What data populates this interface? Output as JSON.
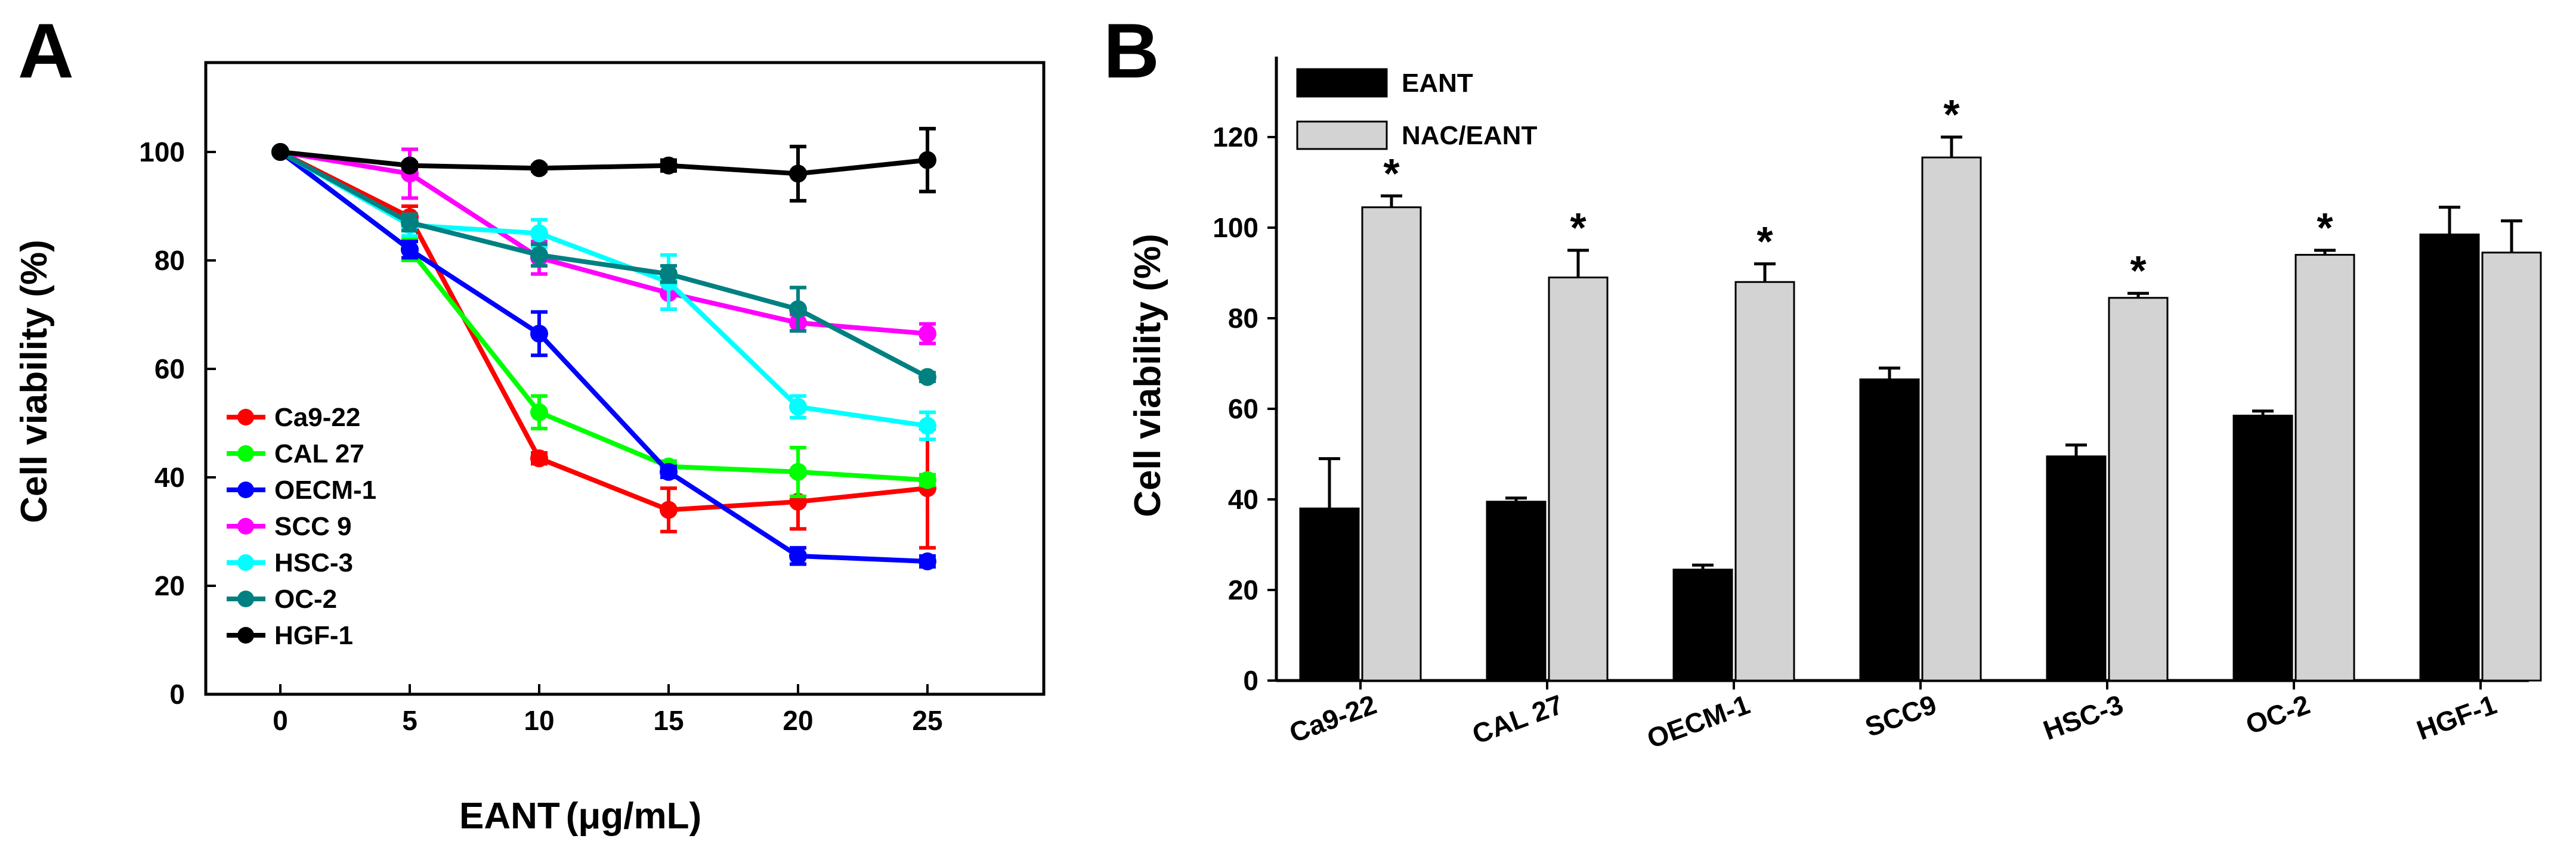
{
  "chart_data": [
    {
      "panel": "A",
      "type": "line",
      "xlabel_main": "EANT",
      "xlabel_unit": "(μg/mL)",
      "ylabel": "Cell viability (%)",
      "x": [
        0,
        5,
        10,
        15,
        20,
        25
      ],
      "x_ticks": [
        "0",
        "5",
        "10",
        "15",
        "20",
        "25"
      ],
      "ylim": [
        0,
        120
      ],
      "y_ticks": [
        "0",
        "20",
        "40",
        "60",
        "80",
        "100"
      ],
      "grid": false,
      "legend_position": "bottom-left",
      "series": [
        {
          "name": "Ca9-22",
          "color": "#ff0000",
          "values": [
            100,
            88,
            43.5,
            34,
            35.5,
            38
          ],
          "errors": [
            0,
            2,
            1,
            4,
            5,
            11
          ]
        },
        {
          "name": "CAL 27",
          "color": "#00ff00",
          "values": [
            100,
            82,
            52,
            42,
            41,
            39.5
          ],
          "errors": [
            0,
            2,
            3,
            1,
            4.5,
            1
          ]
        },
        {
          "name": "OECM-1",
          "color": "#0000ff",
          "values": [
            100,
            82,
            66.5,
            41,
            25.5,
            24.5
          ],
          "errors": [
            0,
            1.5,
            4,
            1,
            1.5,
            1
          ]
        },
        {
          "name": "SCC 9",
          "color": "#ff00ff",
          "values": [
            100,
            96,
            80.5,
            74,
            68.5,
            66.5
          ],
          "errors": [
            0,
            4.5,
            3,
            3,
            1.5,
            1.8
          ]
        },
        {
          "name": "HSC-3",
          "color": "#00ffff",
          "values": [
            100,
            86.5,
            85,
            76,
            53,
            49.5
          ],
          "errors": [
            0,
            2,
            2.5,
            5,
            2,
            2.5
          ]
        },
        {
          "name": "OC-2",
          "color": "#008080",
          "values": [
            100,
            87,
            81,
            77.5,
            71,
            58.5
          ],
          "errors": [
            0,
            1.5,
            2,
            1.5,
            4,
            0.8
          ]
        },
        {
          "name": "HGF-1",
          "color": "#000000",
          "values": [
            100,
            97.5,
            97,
            97.5,
            96,
            98.5
          ],
          "errors": [
            0,
            0.5,
            0.5,
            1,
            5,
            5.8
          ]
        }
      ]
    },
    {
      "panel": "B",
      "type": "bar",
      "ylabel": "Cell viability (%)",
      "categories": [
        "Ca9-22",
        "CAL 27",
        "OECM-1",
        "SCC9",
        "HSC-3",
        "OC-2",
        "HGF-1"
      ],
      "ylim": [
        0,
        140
      ],
      "y_ticks": [
        "0",
        "20",
        "40",
        "60",
        "80",
        "100",
        "120"
      ],
      "grid": false,
      "legend_position": "top-left",
      "significance_marker": "*",
      "series": [
        {
          "name": "EANT",
          "color": "#000000",
          "values": [
            38,
            39.5,
            24.5,
            66.5,
            49.5,
            58.5,
            98.5
          ],
          "errors": [
            11,
            0.8,
            1,
            2.5,
            2.5,
            1,
            6
          ],
          "significant": [
            false,
            false,
            false,
            false,
            false,
            false,
            false
          ]
        },
        {
          "name": "NAC/EANT",
          "color": "#d3d3d3",
          "values": [
            104.5,
            89,
            88,
            115.5,
            84.5,
            94,
            94.5
          ],
          "errors": [
            2.5,
            6,
            4,
            4.5,
            1,
            1,
            7
          ],
          "significant": [
            true,
            true,
            true,
            true,
            true,
            true,
            false
          ]
        }
      ]
    }
  ]
}
